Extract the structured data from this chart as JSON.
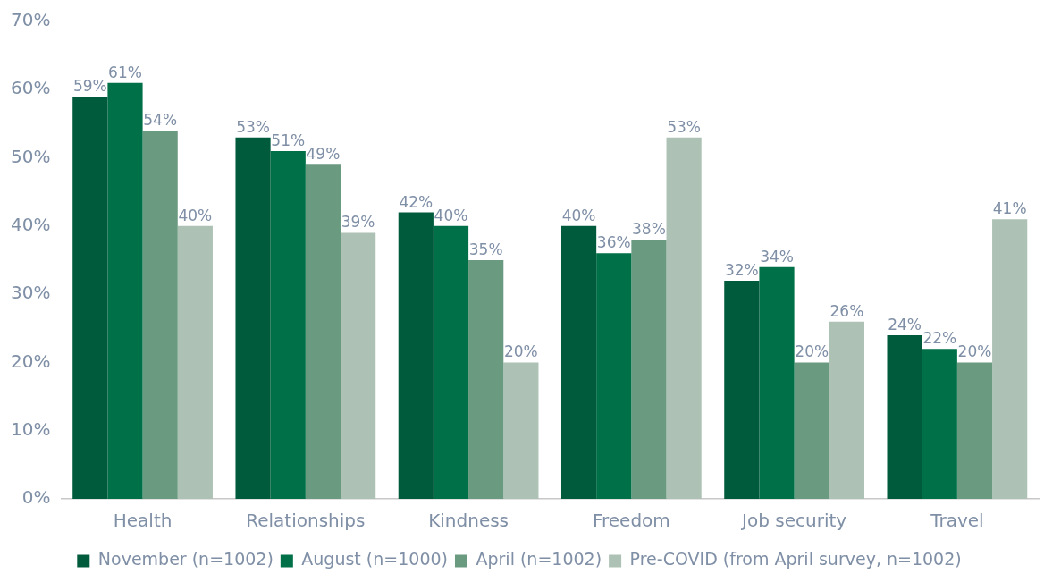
{
  "chart_data": {
    "type": "bar",
    "categories": [
      "Health",
      "Relationships",
      "Kindness",
      "Freedom",
      "Job security",
      "Travel"
    ],
    "series": [
      {
        "name": "November (n=1002)",
        "color": "#005a3c",
        "values": [
          59,
          53,
          42,
          40,
          32,
          24
        ],
        "value_labels": [
          "59%",
          "53%",
          "42%",
          "40%",
          "32%",
          "24%"
        ]
      },
      {
        "name": "August (n=1000)",
        "color": "#007048",
        "values": [
          61,
          51,
          40,
          36,
          34,
          22
        ],
        "value_labels": [
          "61%",
          "51%",
          "40%",
          "36%",
          "34%",
          "22%"
        ]
      },
      {
        "name": "April (n=1002)",
        "color": "#6a9a80",
        "values": [
          54,
          49,
          35,
          38,
          20,
          20
        ],
        "value_labels": [
          "54%",
          "49%",
          "35%",
          "38%",
          "20%",
          "20%"
        ]
      },
      {
        "name": "Pre-COVID (from April survey, n=1002)",
        "color": "#adc2b5",
        "values": [
          40,
          39,
          20,
          53,
          26,
          41
        ],
        "value_labels": [
          "40%",
          "39%",
          "20%",
          "53%",
          "26%",
          "41%"
        ]
      }
    ],
    "ylim": [
      0,
      70
    ],
    "yticks": [
      {
        "value": 0,
        "label": "0%"
      },
      {
        "value": 10,
        "label": "10%"
      },
      {
        "value": 20,
        "label": "20%"
      },
      {
        "value": 30,
        "label": "30%"
      },
      {
        "value": 40,
        "label": "40%"
      },
      {
        "value": 50,
        "label": "50%"
      },
      {
        "value": 60,
        "label": "60%"
      },
      {
        "value": 70,
        "label": "70%"
      }
    ],
    "grid": false,
    "legend": "bottom"
  }
}
